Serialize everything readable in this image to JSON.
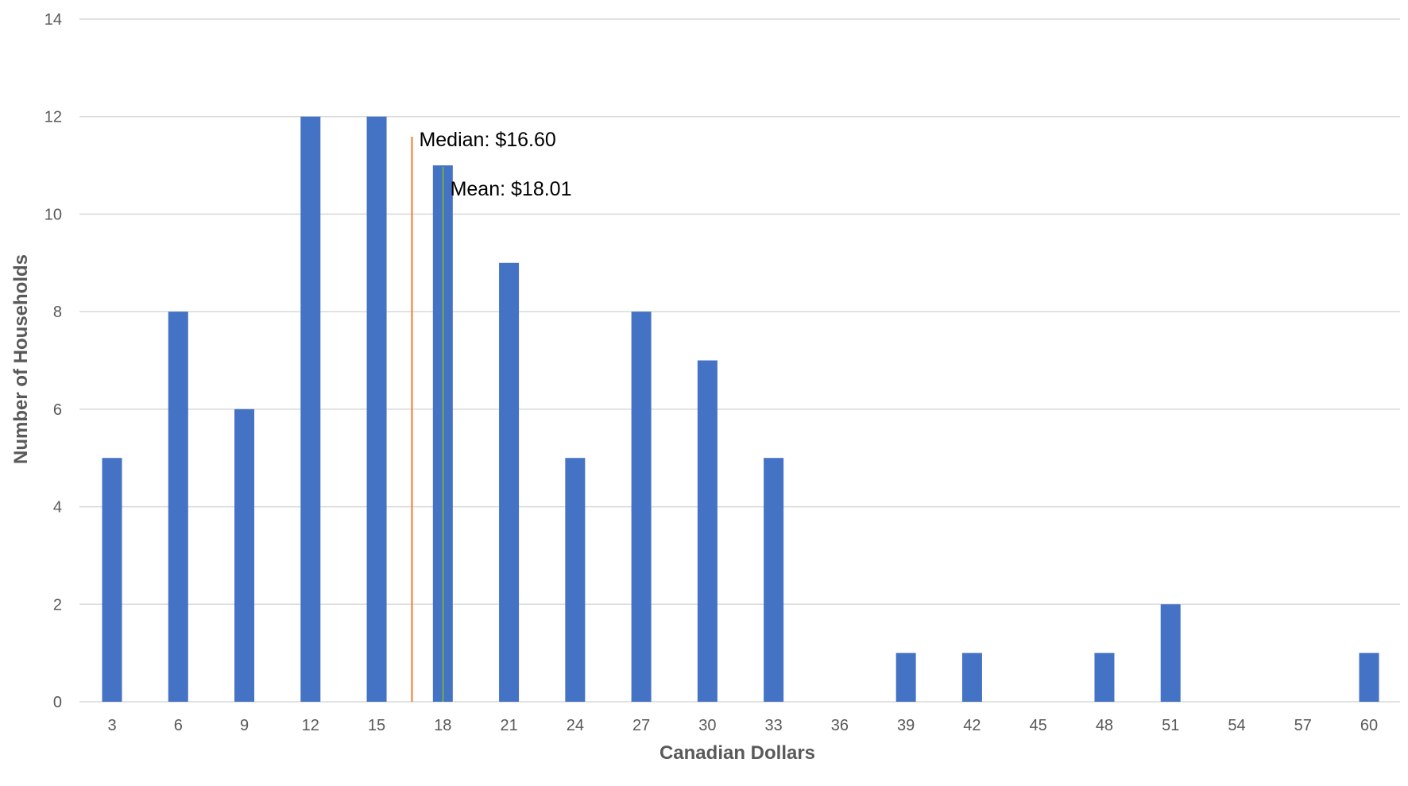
{
  "chart_data": {
    "type": "bar",
    "title": "",
    "xlabel": "Canadian Dollars",
    "ylabel": "Number of Households",
    "categories": [
      "3",
      "6",
      "9",
      "12",
      "15",
      "18",
      "21",
      "24",
      "27",
      "30",
      "33",
      "36",
      "39",
      "42",
      "45",
      "48",
      "51",
      "54",
      "57",
      "60"
    ],
    "values": [
      5,
      8,
      6,
      12,
      12,
      11,
      9,
      5,
      8,
      7,
      5,
      0,
      1,
      1,
      0,
      1,
      2,
      0,
      0,
      1
    ],
    "ylim": [
      0,
      14
    ],
    "yticks": [
      "0",
      "2",
      "4",
      "6",
      "8",
      "10",
      "12",
      "14"
    ],
    "grid": "horizontal",
    "legend": "none",
    "bar_color": "#4472C4",
    "annotations": [
      {
        "label": "Median: $16.60",
        "x": 16.6,
        "color": "#ED7D31"
      },
      {
        "label": "Mean: $18.01",
        "x": 18.01,
        "color": "#70AD47"
      }
    ]
  }
}
